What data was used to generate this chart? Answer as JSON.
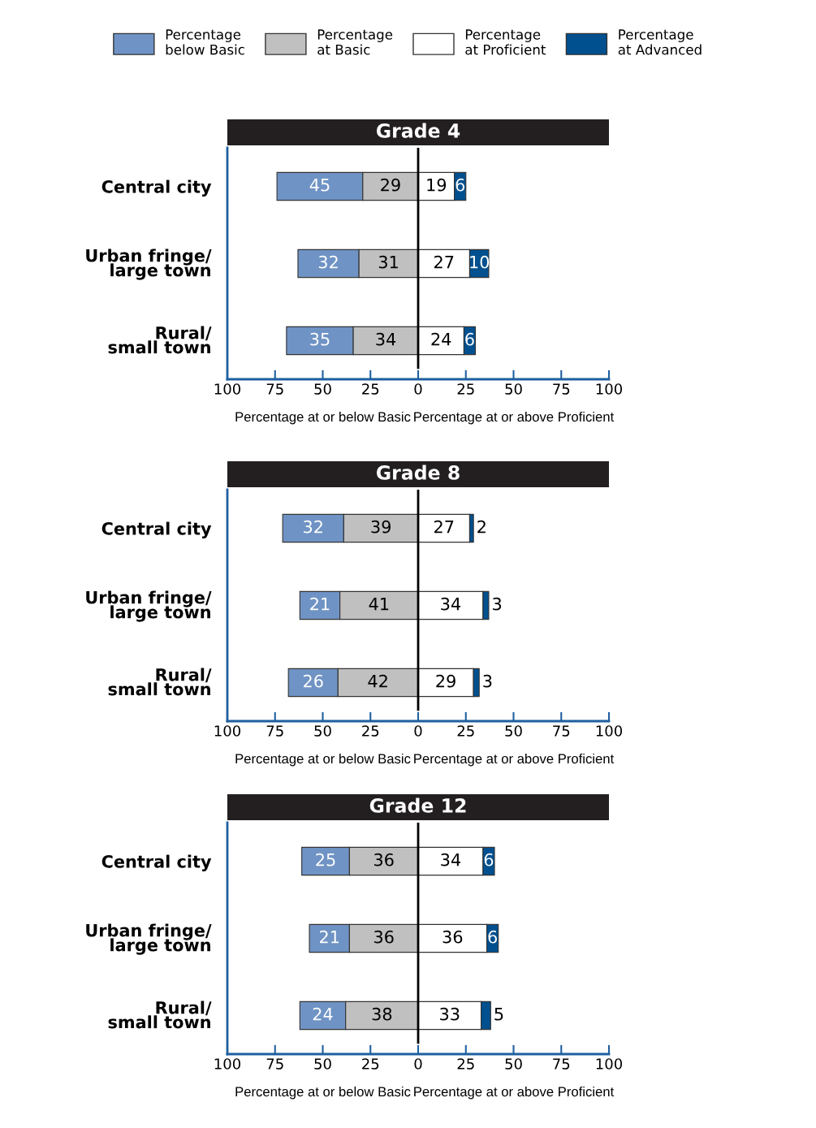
{
  "chart_data": [
    {
      "type": "bar",
      "orientation": "horizontal",
      "title": "Grade 4",
      "legend": "top",
      "data_labels": true,
      "categories": [
        "Central city",
        "Urban fringe/\nlarge town",
        "Rural/\nsmall town"
      ],
      "series": [
        {
          "name": "Percentage\nbelow Basic",
          "color": "#6f93c4",
          "values": [
            45,
            32,
            35
          ],
          "base": [
            -74,
            -63,
            -69
          ]
        },
        {
          "name": "Percentage\nat Basic",
          "color": "#c0c0c0",
          "values": [
            29,
            31,
            34
          ],
          "base": [
            -29,
            -31,
            -34
          ]
        },
        {
          "name": "Percentage\nat Proficient",
          "color": "#ffffff",
          "values": [
            19,
            27,
            24
          ],
          "base": [
            0,
            0,
            0
          ]
        },
        {
          "name": "Percentage\nat Advanced",
          "color": "#00508f",
          "values": [
            6,
            10,
            6
          ],
          "base": [
            19,
            27,
            24
          ]
        }
      ],
      "xlim": [
        -100,
        100
      ],
      "xticks": [
        {
          "value": -100,
          "label": "100"
        },
        {
          "value": -75,
          "label": "75"
        },
        {
          "value": -50,
          "label": "50"
        },
        {
          "value": -25,
          "label": "25"
        },
        0,
        25,
        50,
        75,
        100
      ],
      "ref_lines": [
        {
          "axis": "x",
          "value": 0,
          "color": "#000000"
        }
      ],
      "annotations": [
        "Percentage at or below Basic",
        "Percentage at or above Proficient"
      ]
    },
    {
      "type": "bar",
      "orientation": "horizontal",
      "title": "Grade 8",
      "data_labels": true,
      "categories": [
        "Central city",
        "Urban fringe/\nlarge town",
        "Rural/\nsmall town"
      ],
      "series": [
        {
          "color": "#6f93c4",
          "values": [
            32,
            21,
            26
          ],
          "base": [
            -71,
            -62,
            -68
          ]
        },
        {
          "color": "#c0c0c0",
          "values": [
            39,
            41,
            42
          ],
          "base": [
            -39,
            -41,
            -42
          ]
        },
        {
          "color": "#ffffff",
          "values": [
            27,
            34,
            29
          ],
          "base": [
            0,
            0,
            0
          ]
        },
        {
          "color": "#00508f",
          "values": [
            2,
            3,
            3
          ],
          "base": [
            27,
            34,
            29
          ]
        }
      ],
      "xlim": [
        -100,
        100
      ],
      "xticks": [
        {
          "value": -100,
          "label": "100"
        },
        {
          "value": -75,
          "label": "75"
        },
        {
          "value": -50,
          "label": "50"
        },
        {
          "value": -25,
          "label": "25"
        },
        0,
        25,
        50,
        75,
        100
      ],
      "ref_lines": [
        {
          "axis": "x",
          "value": 0,
          "color": "#000000"
        }
      ],
      "annotations": [
        "Percentage at or below Basic",
        "Percentage at or above Proficient"
      ]
    },
    {
      "type": "bar",
      "orientation": "horizontal",
      "title": "Grade 12",
      "data_labels": true,
      "categories": [
        "Central city",
        "Urban fringe/\nlarge town",
        "Rural/\nsmall town"
      ],
      "series": [
        {
          "color": "#6f93c4",
          "values": [
            25,
            21,
            24
          ],
          "base": [
            -61,
            -57,
            -62
          ]
        },
        {
          "color": "#c0c0c0",
          "values": [
            36,
            36,
            38
          ],
          "base": [
            -36,
            -36,
            -38
          ]
        },
        {
          "color": "#ffffff",
          "values": [
            34,
            36,
            33
          ],
          "base": [
            0,
            0,
            0
          ]
        },
        {
          "color": "#00508f",
          "values": [
            6,
            6,
            5
          ],
          "base": [
            34,
            36,
            33
          ]
        }
      ],
      "xlim": [
        -100,
        100
      ],
      "xticks": [
        {
          "value": -100,
          "label": "100"
        },
        {
          "value": -75,
          "label": "75"
        },
        {
          "value": -50,
          "label": "50"
        },
        {
          "value": -25,
          "label": "25"
        },
        0,
        25,
        50,
        75,
        100
      ],
      "ref_lines": [
        {
          "axis": "x",
          "value": 0,
          "color": "#000000"
        }
      ],
      "annotations": [
        "Percentage at or below Basic",
        "Percentage at or above Proficient"
      ]
    }
  ]
}
